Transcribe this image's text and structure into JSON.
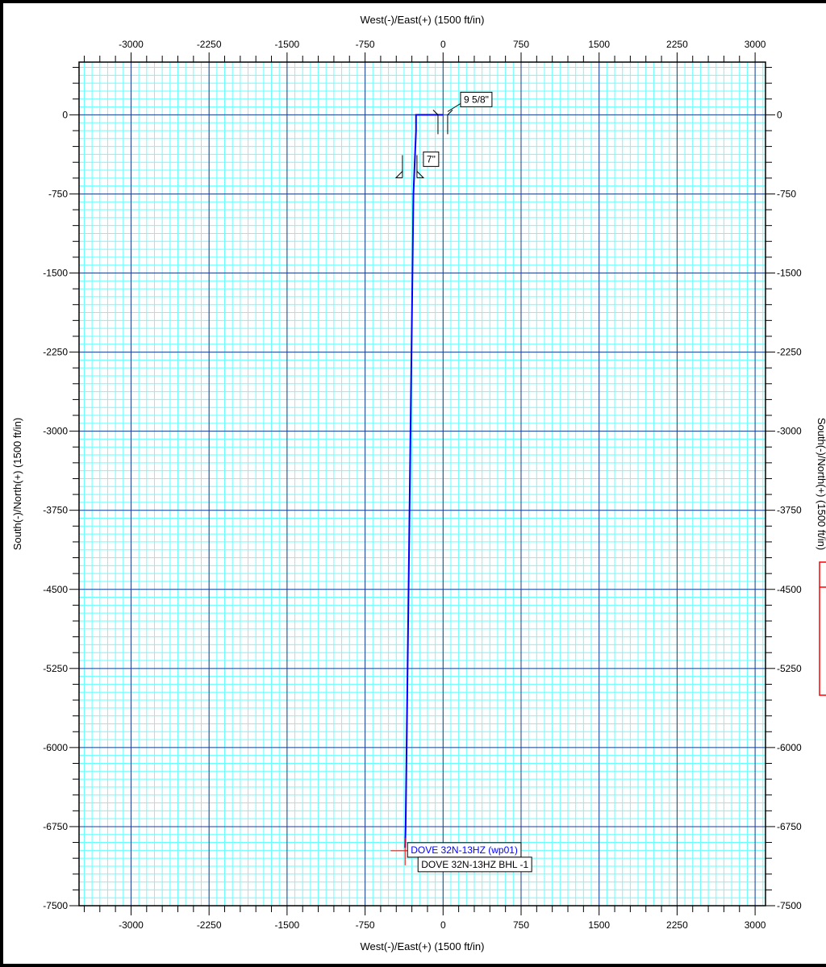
{
  "chart_data": {
    "type": "line",
    "title": "",
    "xlabel_top": "West(-)/East(+) (1500 ft/in)",
    "xlabel_bottom": "West(-)/East(+) (1500 ft/in)",
    "ylabel_left": "South(-)/North(+) (1500 ft/in)",
    "ylabel_right": "South(-)/North(+) (1500 ft/in)",
    "xlim": [
      -3500,
      3100
    ],
    "ylim": [
      -7500,
      500
    ],
    "xticks": [
      -3000,
      -2250,
      -1500,
      -750,
      0,
      750,
      1500,
      2250,
      3000
    ],
    "yticks": [
      0,
      -750,
      -1500,
      -2250,
      -3000,
      -3750,
      -4500,
      -5250,
      -6000,
      -6750,
      -7500
    ],
    "grid": true,
    "colors": {
      "minor_grid": "#66ffff",
      "major_grid": "#1f3a93",
      "path": "#0000ff",
      "target": "#ff0000",
      "background": "#ffffff"
    },
    "series": [
      {
        "name": "DOVE 32N-13HZ (wp01)",
        "x": [
          0,
          -260,
          -260,
          -285,
          -360,
          -365
        ],
        "y": [
          0,
          0,
          -150,
          -750,
          -6750,
          -6950
        ]
      }
    ],
    "annotations": [
      {
        "text": "9 5/8\"",
        "x": 75,
        "y": 0
      },
      {
        "text": "7\"",
        "x": -220,
        "y": -520
      },
      {
        "text": "DOVE 32N-13HZ (wp01)",
        "x": -370,
        "y": -6960
      },
      {
        "text": "DOVE 32N-13HZ BHL -1",
        "x": -365,
        "y": -7040
      }
    ],
    "target": {
      "x": -365,
      "y": -7040
    }
  }
}
